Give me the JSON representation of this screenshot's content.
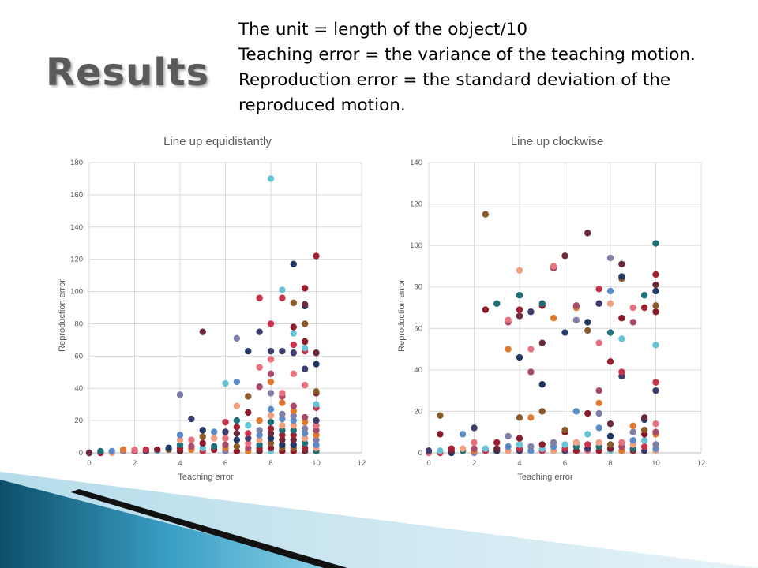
{
  "slide": {
    "title": "Results",
    "notes": [
      "The unit = length of the object/10",
      "Teaching error = the variance of the teaching motion.",
      "Reproduction error = the standard deviation of the",
      "reproduced motion."
    ]
  },
  "colors": {
    "palette": [
      "#1f3864",
      "#8b1a2b",
      "#c8344a",
      "#e8707f",
      "#e07a2e",
      "#5b8bc9",
      "#1f6f78",
      "#6a2a3a",
      "#8a5a2a",
      "#67c4d6",
      "#3c3c6e",
      "#a84a6a",
      "#7f7fa8",
      "#f0a080",
      "#a02030"
    ]
  },
  "chart_data": [
    {
      "type": "scatter",
      "title": "Line up equidistantly",
      "xlabel": "Teaching error",
      "ylabel": "Reproduction error",
      "xlim": [
        0,
        12
      ],
      "ylim": [
        0,
        180
      ],
      "xticks": [
        0,
        2,
        4,
        6,
        8,
        10,
        12
      ],
      "yticks": [
        0,
        20,
        40,
        60,
        80,
        100,
        120,
        140,
        160,
        180
      ],
      "grid": true,
      "points": [
        [
          0,
          0
        ],
        [
          0,
          0
        ],
        [
          0.5,
          0
        ],
        [
          0.5,
          1
        ],
        [
          1,
          0
        ],
        [
          1,
          1
        ],
        [
          1.5,
          1
        ],
        [
          1.5,
          2
        ],
        [
          2,
          1
        ],
        [
          2,
          2
        ],
        [
          2.5,
          1
        ],
        [
          2.5,
          2
        ],
        [
          3,
          1
        ],
        [
          3,
          2
        ],
        [
          3.5,
          2
        ],
        [
          3.5,
          3
        ],
        [
          4,
          1
        ],
        [
          4,
          3
        ],
        [
          4,
          5
        ],
        [
          4,
          8
        ],
        [
          4,
          11
        ],
        [
          4,
          36
        ],
        [
          4.5,
          2
        ],
        [
          4.5,
          4
        ],
        [
          4.5,
          8
        ],
        [
          4.5,
          21
        ],
        [
          5,
          1
        ],
        [
          5,
          3
        ],
        [
          5,
          6
        ],
        [
          5,
          10
        ],
        [
          5,
          14
        ],
        [
          5,
          75
        ],
        [
          5.5,
          2
        ],
        [
          5.5,
          4
        ],
        [
          5.5,
          9
        ],
        [
          5.5,
          13
        ],
        [
          6,
          1
        ],
        [
          6,
          3
        ],
        [
          6,
          5
        ],
        [
          6,
          9
        ],
        [
          6,
          13
        ],
        [
          6,
          19
        ],
        [
          6,
          43
        ],
        [
          6.5,
          1
        ],
        [
          6.5,
          4
        ],
        [
          6.5,
          8
        ],
        [
          6.5,
          12
        ],
        [
          6.5,
          16
        ],
        [
          6.5,
          20
        ],
        [
          6.5,
          29
        ],
        [
          6.5,
          44
        ],
        [
          6.5,
          71
        ],
        [
          7,
          1
        ],
        [
          7,
          3
        ],
        [
          7,
          6
        ],
        [
          7,
          9
        ],
        [
          7,
          12
        ],
        [
          7,
          17
        ],
        [
          7,
          25
        ],
        [
          7,
          35
        ],
        [
          7,
          63
        ],
        [
          7.5,
          1
        ],
        [
          7.5,
          3
        ],
        [
          7.5,
          5
        ],
        [
          7.5,
          8
        ],
        [
          7.5,
          11
        ],
        [
          7.5,
          14
        ],
        [
          7.5,
          20
        ],
        [
          7.5,
          41
        ],
        [
          7.5,
          53
        ],
        [
          7.5,
          75
        ],
        [
          7.5,
          96
        ],
        [
          8,
          1
        ],
        [
          8,
          3
        ],
        [
          8,
          6
        ],
        [
          8,
          9
        ],
        [
          8,
          12
        ],
        [
          8,
          15
        ],
        [
          8,
          19
        ],
        [
          8,
          23
        ],
        [
          8,
          27
        ],
        [
          8,
          37
        ],
        [
          8,
          44
        ],
        [
          8,
          49
        ],
        [
          8,
          58
        ],
        [
          8,
          63
        ],
        [
          8,
          80
        ],
        [
          8,
          170
        ],
        [
          8.5,
          1
        ],
        [
          8.5,
          3
        ],
        [
          8.5,
          5
        ],
        [
          8.5,
          8
        ],
        [
          8.5,
          11
        ],
        [
          8.5,
          14
        ],
        [
          8.5,
          17
        ],
        [
          8.5,
          21
        ],
        [
          8.5,
          24
        ],
        [
          8.5,
          31
        ],
        [
          8.5,
          35
        ],
        [
          8.5,
          37
        ],
        [
          8.5,
          63
        ],
        [
          8.5,
          96
        ],
        [
          8.5,
          101
        ],
        [
          9,
          1
        ],
        [
          9,
          3
        ],
        [
          9,
          5
        ],
        [
          9,
          8
        ],
        [
          9,
          11
        ],
        [
          9,
          14
        ],
        [
          9,
          17
        ],
        [
          9,
          20
        ],
        [
          9,
          23
        ],
        [
          9,
          26
        ],
        [
          9,
          29
        ],
        [
          9,
          49
        ],
        [
          9,
          62
        ],
        [
          9,
          67
        ],
        [
          9,
          74
        ],
        [
          9,
          78
        ],
        [
          9,
          93
        ],
        [
          9,
          117
        ],
        [
          9.5,
          1
        ],
        [
          9.5,
          3
        ],
        [
          9.5,
          6
        ],
        [
          9.5,
          9
        ],
        [
          9.5,
          12
        ],
        [
          9.5,
          15
        ],
        [
          9.5,
          19
        ],
        [
          9.5,
          22
        ],
        [
          9.5,
          42
        ],
        [
          9.5,
          52
        ],
        [
          9.5,
          63
        ],
        [
          9.5,
          65
        ],
        [
          9.5,
          69
        ],
        [
          9.5,
          80
        ],
        [
          9.5,
          91
        ],
        [
          9.5,
          92
        ],
        [
          9.5,
          102
        ],
        [
          10,
          1
        ],
        [
          10,
          3
        ],
        [
          10,
          5
        ],
        [
          10,
          8
        ],
        [
          10,
          11
        ],
        [
          10,
          14
        ],
        [
          10,
          17
        ],
        [
          10,
          20
        ],
        [
          10,
          28
        ],
        [
          10,
          30
        ],
        [
          10,
          37
        ],
        [
          10,
          38
        ],
        [
          10,
          55
        ],
        [
          10,
          62
        ],
        [
          10,
          122
        ]
      ]
    },
    {
      "type": "scatter",
      "title": "Line up clockwise",
      "xlabel": "Teaching error",
      "ylabel": "Reproduction error",
      "xlim": [
        0,
        12
      ],
      "ylim": [
        0,
        140
      ],
      "xticks": [
        0,
        2,
        4,
        6,
        8,
        10,
        12
      ],
      "yticks": [
        0,
        20,
        40,
        60,
        80,
        100,
        120,
        140
      ],
      "grid": true,
      "points": [
        [
          0,
          0
        ],
        [
          0,
          1
        ],
        [
          0.5,
          0
        ],
        [
          0.5,
          1
        ],
        [
          0.5,
          9
        ],
        [
          0.5,
          18
        ],
        [
          1,
          0
        ],
        [
          1,
          1
        ],
        [
          1,
          2
        ],
        [
          1.5,
          1
        ],
        [
          1.5,
          2
        ],
        [
          1.5,
          9
        ],
        [
          2,
          0
        ],
        [
          2,
          1
        ],
        [
          2,
          2
        ],
        [
          2,
          5
        ],
        [
          2,
          12
        ],
        [
          2.5,
          1
        ],
        [
          2.5,
          2
        ],
        [
          2.5,
          69
        ],
        [
          2.5,
          115
        ],
        [
          3,
          1
        ],
        [
          3,
          2
        ],
        [
          3,
          5
        ],
        [
          3,
          72
        ],
        [
          3.5,
          1
        ],
        [
          3.5,
          3
        ],
        [
          3.5,
          8
        ],
        [
          3.5,
          50
        ],
        [
          3.5,
          63
        ],
        [
          3.5,
          64
        ],
        [
          4,
          1
        ],
        [
          4,
          2
        ],
        [
          4,
          4
        ],
        [
          4,
          7
        ],
        [
          4,
          17
        ],
        [
          4,
          46
        ],
        [
          4,
          66
        ],
        [
          4,
          69
        ],
        [
          4,
          76
        ],
        [
          4,
          88
        ],
        [
          4.5,
          1
        ],
        [
          4.5,
          3
        ],
        [
          4.5,
          17
        ],
        [
          4.5,
          39
        ],
        [
          4.5,
          50
        ],
        [
          4.5,
          68
        ],
        [
          5,
          1
        ],
        [
          5,
          2
        ],
        [
          5,
          4
        ],
        [
          5,
          20
        ],
        [
          5,
          33
        ],
        [
          5,
          53
        ],
        [
          5,
          71
        ],
        [
          5,
          72
        ],
        [
          5.5,
          1
        ],
        [
          5.5,
          3
        ],
        [
          5.5,
          5
        ],
        [
          5.5,
          65
        ],
        [
          5.5,
          89
        ],
        [
          5.5,
          90
        ],
        [
          6,
          1
        ],
        [
          6,
          2
        ],
        [
          6,
          4
        ],
        [
          6,
          10
        ],
        [
          6,
          11
        ],
        [
          6,
          58
        ],
        [
          6,
          95
        ],
        [
          6.5,
          1
        ],
        [
          6.5,
          3
        ],
        [
          6.5,
          5
        ],
        [
          6.5,
          20
        ],
        [
          6.5,
          64
        ],
        [
          6.5,
          70
        ],
        [
          6.5,
          71
        ],
        [
          7,
          1
        ],
        [
          7,
          2
        ],
        [
          7,
          4
        ],
        [
          7,
          9
        ],
        [
          7,
          19
        ],
        [
          7,
          59
        ],
        [
          7,
          63
        ],
        [
          7,
          106
        ],
        [
          7.5,
          1
        ],
        [
          7.5,
          3
        ],
        [
          7.5,
          5
        ],
        [
          7.5,
          12
        ],
        [
          7.5,
          19
        ],
        [
          7.5,
          24
        ],
        [
          7.5,
          30
        ],
        [
          7.5,
          53
        ],
        [
          7.5,
          72
        ],
        [
          7.5,
          79
        ],
        [
          8,
          1
        ],
        [
          8,
          2
        ],
        [
          8,
          4
        ],
        [
          8,
          8
        ],
        [
          8,
          14
        ],
        [
          8,
          44
        ],
        [
          8,
          58
        ],
        [
          8,
          72
        ],
        [
          8,
          78
        ],
        [
          8,
          94
        ],
        [
          8.5,
          1
        ],
        [
          8.5,
          3
        ],
        [
          8.5,
          5
        ],
        [
          8.5,
          37
        ],
        [
          8.5,
          39
        ],
        [
          8.5,
          55
        ],
        [
          8.5,
          65
        ],
        [
          8.5,
          84
        ],
        [
          8.5,
          85
        ],
        [
          8.5,
          91
        ],
        [
          9,
          1
        ],
        [
          9,
          2
        ],
        [
          9,
          4
        ],
        [
          9,
          6
        ],
        [
          9,
          10
        ],
        [
          9,
          13
        ],
        [
          9,
          63
        ],
        [
          9,
          70
        ],
        [
          9.5,
          1
        ],
        [
          9.5,
          3
        ],
        [
          9.5,
          6
        ],
        [
          9.5,
          9
        ],
        [
          9.5,
          11
        ],
        [
          9.5,
          16
        ],
        [
          9.5,
          17
        ],
        [
          9.5,
          70
        ],
        [
          9.5,
          76
        ],
        [
          10,
          1
        ],
        [
          10,
          2
        ],
        [
          10,
          4
        ],
        [
          10,
          9
        ],
        [
          10,
          10
        ],
        [
          10,
          14
        ],
        [
          10,
          30
        ],
        [
          10,
          34
        ],
        [
          10,
          52
        ],
        [
          10,
          68
        ],
        [
          10,
          71
        ],
        [
          10,
          78
        ],
        [
          10,
          81
        ],
        [
          10,
          86
        ],
        [
          10,
          101
        ]
      ]
    }
  ]
}
